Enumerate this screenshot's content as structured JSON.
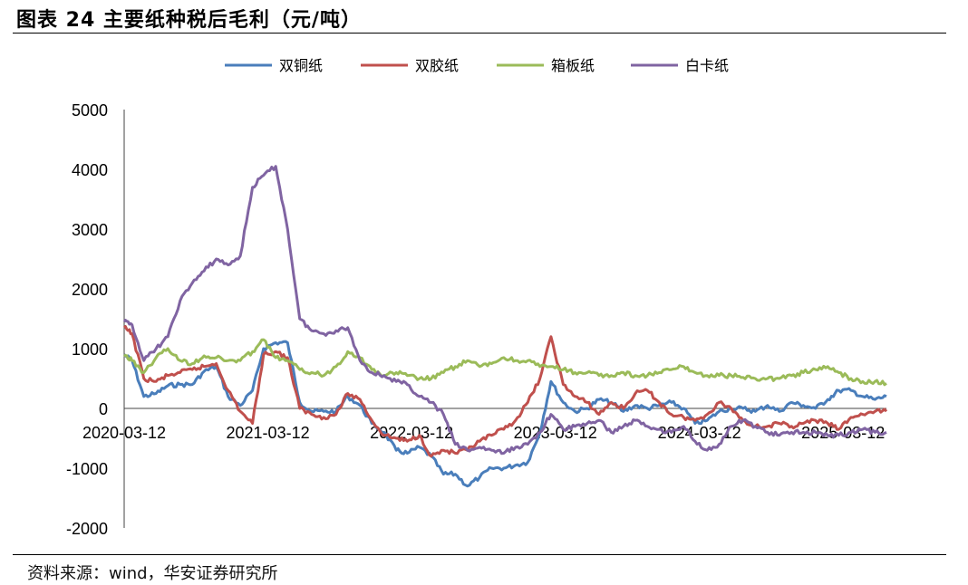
{
  "header": {
    "title": "图表 24 主要纸种税后毛利（元/吨）"
  },
  "footer": {
    "source": "资料来源：wind，华安证券研究所"
  },
  "chart_data": {
    "type": "line",
    "title": "图表 24 主要纸种税后毛利（元/吨）",
    "ylim": [
      -2000,
      5000
    ],
    "yticks": [
      5000,
      4000,
      3000,
      2000,
      1000,
      0,
      -1000,
      -2000
    ],
    "xrange": [
      "2020-03-12",
      "2025-06-30"
    ],
    "xticks": [
      "2020-03-12",
      "2021-03-12",
      "2022-03-12",
      "2023-03-12",
      "2024-03-12",
      "2025-03-12"
    ],
    "legend_position": "top",
    "grid": false,
    "series": [
      {
        "name": "双铜纸",
        "color": "#4a7ebb",
        "points": [
          [
            "2020-03-12",
            900
          ],
          [
            "2020-04-01",
            800
          ],
          [
            "2020-05-01",
            200
          ],
          [
            "2020-06-01",
            250
          ],
          [
            "2020-07-01",
            380
          ],
          [
            "2020-08-01",
            400
          ],
          [
            "2020-09-01",
            400
          ],
          [
            "2020-10-01",
            620
          ],
          [
            "2020-11-01",
            700
          ],
          [
            "2020-12-01",
            200
          ],
          [
            "2021-01-01",
            50
          ],
          [
            "2021-02-01",
            300
          ],
          [
            "2021-03-01",
            1000
          ],
          [
            "2021-04-01",
            1100
          ],
          [
            "2021-05-01",
            1100
          ],
          [
            "2021-06-01",
            100
          ],
          [
            "2021-07-01",
            -50
          ],
          [
            "2021-08-01",
            -50
          ],
          [
            "2021-09-01",
            -50
          ],
          [
            "2021-10-01",
            200
          ],
          [
            "2021-11-01",
            50
          ],
          [
            "2021-12-01",
            -250
          ],
          [
            "2022-01-01",
            -400
          ],
          [
            "2022-02-01",
            -700
          ],
          [
            "2022-03-01",
            -750
          ],
          [
            "2022-04-01",
            -650
          ],
          [
            "2022-05-01",
            -800
          ],
          [
            "2022-06-01",
            -1100
          ],
          [
            "2022-07-01",
            -1100
          ],
          [
            "2022-08-01",
            -1300
          ],
          [
            "2022-09-01",
            -1150
          ],
          [
            "2022-10-01",
            -1000
          ],
          [
            "2022-11-01",
            -1000
          ],
          [
            "2022-12-01",
            -950
          ],
          [
            "2023-01-01",
            -900
          ],
          [
            "2023-02-01",
            -400
          ],
          [
            "2023-03-01",
            450
          ],
          [
            "2023-04-01",
            100
          ],
          [
            "2023-05-01",
            -50
          ],
          [
            "2023-06-01",
            0
          ],
          [
            "2023-07-01",
            150
          ],
          [
            "2023-08-01",
            100
          ],
          [
            "2023-09-01",
            -50
          ],
          [
            "2023-10-01",
            50
          ],
          [
            "2023-11-01",
            0
          ],
          [
            "2023-12-01",
            50
          ],
          [
            "2024-01-01",
            100
          ],
          [
            "2024-02-01",
            0
          ],
          [
            "2024-03-01",
            -250
          ],
          [
            "2024-04-01",
            -200
          ],
          [
            "2024-05-01",
            -50
          ],
          [
            "2024-06-01",
            0
          ],
          [
            "2024-07-01",
            0
          ],
          [
            "2024-08-01",
            -50
          ],
          [
            "2024-09-01",
            50
          ],
          [
            "2024-10-01",
            -50
          ],
          [
            "2024-11-01",
            100
          ],
          [
            "2024-12-01",
            50
          ],
          [
            "2025-01-01",
            0
          ],
          [
            "2025-02-01",
            150
          ],
          [
            "2025-03-01",
            300
          ],
          [
            "2025-04-01",
            300
          ],
          [
            "2025-05-01",
            200
          ],
          [
            "2025-06-01",
            150
          ],
          [
            "2025-06-30",
            200
          ]
        ]
      },
      {
        "name": "双胶纸",
        "color": "#c0504d",
        "points": [
          [
            "2020-03-12",
            1350
          ],
          [
            "2020-04-01",
            1250
          ],
          [
            "2020-05-01",
            500
          ],
          [
            "2020-06-01",
            450
          ],
          [
            "2020-07-01",
            550
          ],
          [
            "2020-08-01",
            600
          ],
          [
            "2020-09-01",
            650
          ],
          [
            "2020-10-01",
            700
          ],
          [
            "2020-11-01",
            750
          ],
          [
            "2020-12-01",
            300
          ],
          [
            "2021-01-01",
            -50
          ],
          [
            "2021-02-01",
            -250
          ],
          [
            "2021-03-01",
            900
          ],
          [
            "2021-04-01",
            950
          ],
          [
            "2021-05-01",
            850
          ],
          [
            "2021-06-01",
            0
          ],
          [
            "2021-07-01",
            -100
          ],
          [
            "2021-08-01",
            -150
          ],
          [
            "2021-09-01",
            -100
          ],
          [
            "2021-10-01",
            250
          ],
          [
            "2021-11-01",
            150
          ],
          [
            "2021-12-01",
            -200
          ],
          [
            "2022-01-01",
            -450
          ],
          [
            "2022-02-01",
            -500
          ],
          [
            "2022-03-01",
            -550
          ],
          [
            "2022-04-01",
            -450
          ],
          [
            "2022-05-01",
            -800
          ],
          [
            "2022-06-01",
            -700
          ],
          [
            "2022-07-01",
            -750
          ],
          [
            "2022-08-01",
            -700
          ],
          [
            "2022-09-01",
            -550
          ],
          [
            "2022-10-01",
            -450
          ],
          [
            "2022-11-01",
            -350
          ],
          [
            "2022-12-01",
            -200
          ],
          [
            "2023-01-01",
            100
          ],
          [
            "2023-02-01",
            500
          ],
          [
            "2023-03-01",
            1200
          ],
          [
            "2023-04-01",
            400
          ],
          [
            "2023-05-01",
            200
          ],
          [
            "2023-06-01",
            100
          ],
          [
            "2023-07-01",
            -100
          ],
          [
            "2023-08-01",
            100
          ],
          [
            "2023-09-01",
            0
          ],
          [
            "2023-10-01",
            250
          ],
          [
            "2023-11-01",
            300
          ],
          [
            "2023-12-01",
            100
          ],
          [
            "2024-01-01",
            -100
          ],
          [
            "2024-02-01",
            -150
          ],
          [
            "2024-03-01",
            -200
          ],
          [
            "2024-04-01",
            -100
          ],
          [
            "2024-05-01",
            100
          ],
          [
            "2024-06-01",
            0
          ],
          [
            "2024-07-01",
            -200
          ],
          [
            "2024-08-01",
            -300
          ],
          [
            "2024-09-01",
            -300
          ],
          [
            "2024-10-01",
            -250
          ],
          [
            "2024-11-01",
            -300
          ],
          [
            "2024-12-01",
            -250
          ],
          [
            "2025-01-01",
            -200
          ],
          [
            "2025-02-01",
            -250
          ],
          [
            "2025-03-01",
            -350
          ],
          [
            "2025-04-01",
            -150
          ],
          [
            "2025-05-01",
            -100
          ],
          [
            "2025-06-01",
            -50
          ],
          [
            "2025-06-30",
            -50
          ]
        ]
      },
      {
        "name": "箱板纸",
        "color": "#9bbb59",
        "points": [
          [
            "2020-03-12",
            900
          ],
          [
            "2020-04-01",
            800
          ],
          [
            "2020-05-01",
            600
          ],
          [
            "2020-06-01",
            850
          ],
          [
            "2020-07-01",
            1000
          ],
          [
            "2020-08-01",
            800
          ],
          [
            "2020-09-01",
            750
          ],
          [
            "2020-10-01",
            880
          ],
          [
            "2020-11-01",
            850
          ],
          [
            "2020-12-01",
            800
          ],
          [
            "2021-01-01",
            800
          ],
          [
            "2021-02-01",
            950
          ],
          [
            "2021-03-01",
            1150
          ],
          [
            "2021-04-01",
            850
          ],
          [
            "2021-05-01",
            800
          ],
          [
            "2021-06-01",
            650
          ],
          [
            "2021-07-01",
            600
          ],
          [
            "2021-08-01",
            550
          ],
          [
            "2021-09-01",
            700
          ],
          [
            "2021-10-01",
            950
          ],
          [
            "2021-11-01",
            850
          ],
          [
            "2021-12-01",
            650
          ],
          [
            "2022-01-01",
            550
          ],
          [
            "2022-02-01",
            600
          ],
          [
            "2022-03-01",
            550
          ],
          [
            "2022-04-01",
            500
          ],
          [
            "2022-05-01",
            500
          ],
          [
            "2022-06-01",
            600
          ],
          [
            "2022-07-01",
            700
          ],
          [
            "2022-08-01",
            800
          ],
          [
            "2022-09-01",
            700
          ],
          [
            "2022-10-01",
            750
          ],
          [
            "2022-11-01",
            850
          ],
          [
            "2022-12-01",
            800
          ],
          [
            "2023-01-01",
            800
          ],
          [
            "2023-02-01",
            700
          ],
          [
            "2023-03-01",
            700
          ],
          [
            "2023-04-01",
            650
          ],
          [
            "2023-05-01",
            600
          ],
          [
            "2023-06-01",
            600
          ],
          [
            "2023-07-01",
            550
          ],
          [
            "2023-08-01",
            550
          ],
          [
            "2023-09-01",
            600
          ],
          [
            "2023-10-01",
            550
          ],
          [
            "2023-11-01",
            550
          ],
          [
            "2023-12-01",
            600
          ],
          [
            "2024-01-01",
            650
          ],
          [
            "2024-02-01",
            700
          ],
          [
            "2024-03-01",
            600
          ],
          [
            "2024-04-01",
            550
          ],
          [
            "2024-05-01",
            550
          ],
          [
            "2024-06-01",
            550
          ],
          [
            "2024-07-01",
            520
          ],
          [
            "2024-08-01",
            500
          ],
          [
            "2024-09-01",
            500
          ],
          [
            "2024-10-01",
            500
          ],
          [
            "2024-11-01",
            550
          ],
          [
            "2024-12-01",
            600
          ],
          [
            "2025-01-01",
            650
          ],
          [
            "2025-02-01",
            700
          ],
          [
            "2025-03-01",
            600
          ],
          [
            "2025-04-01",
            500
          ],
          [
            "2025-05-01",
            450
          ],
          [
            "2025-06-01",
            450
          ],
          [
            "2025-06-30",
            420
          ]
        ]
      },
      {
        "name": "白卡纸",
        "color": "#8064a2",
        "points": [
          [
            "2020-03-12",
            1450
          ],
          [
            "2020-04-01",
            1400
          ],
          [
            "2020-05-01",
            800
          ],
          [
            "2020-06-01",
            1000
          ],
          [
            "2020-07-01",
            1200
          ],
          [
            "2020-08-01",
            1800
          ],
          [
            "2020-09-01",
            2100
          ],
          [
            "2020-10-01",
            2300
          ],
          [
            "2020-11-01",
            2500
          ],
          [
            "2020-12-01",
            2400
          ],
          [
            "2021-01-01",
            2550
          ],
          [
            "2021-02-01",
            3700
          ],
          [
            "2021-03-01",
            3900
          ],
          [
            "2021-04-01",
            4050
          ],
          [
            "2021-05-01",
            3000
          ],
          [
            "2021-06-01",
            1500
          ],
          [
            "2021-07-01",
            1300
          ],
          [
            "2021-08-01",
            1250
          ],
          [
            "2021-09-01",
            1300
          ],
          [
            "2021-10-01",
            1350
          ],
          [
            "2021-11-01",
            800
          ],
          [
            "2021-12-01",
            600
          ],
          [
            "2022-01-01",
            550
          ],
          [
            "2022-02-01",
            450
          ],
          [
            "2022-03-01",
            400
          ],
          [
            "2022-04-01",
            200
          ],
          [
            "2022-05-01",
            100
          ],
          [
            "2022-06-01",
            -100
          ],
          [
            "2022-07-01",
            -600
          ],
          [
            "2022-08-01",
            -700
          ],
          [
            "2022-09-01",
            -650
          ],
          [
            "2022-10-01",
            -700
          ],
          [
            "2022-11-01",
            -750
          ],
          [
            "2022-12-01",
            -650
          ],
          [
            "2023-01-01",
            -600
          ],
          [
            "2023-02-01",
            -400
          ],
          [
            "2023-03-01",
            -100
          ],
          [
            "2023-04-01",
            -350
          ],
          [
            "2023-05-01",
            -300
          ],
          [
            "2023-06-01",
            -250
          ],
          [
            "2023-07-01",
            -200
          ],
          [
            "2023-08-01",
            -400
          ],
          [
            "2023-09-01",
            -300
          ],
          [
            "2023-10-01",
            -200
          ],
          [
            "2023-11-01",
            -300
          ],
          [
            "2023-12-01",
            -350
          ],
          [
            "2024-01-01",
            -400
          ],
          [
            "2024-02-01",
            -300
          ],
          [
            "2024-03-01",
            -550
          ],
          [
            "2024-04-01",
            -700
          ],
          [
            "2024-05-01",
            -600
          ],
          [
            "2024-06-01",
            -300
          ],
          [
            "2024-07-01",
            -200
          ],
          [
            "2024-08-01",
            -300
          ],
          [
            "2024-09-01",
            -400
          ],
          [
            "2024-10-01",
            -450
          ],
          [
            "2024-11-01",
            -400
          ],
          [
            "2024-12-01",
            -400
          ],
          [
            "2025-01-01",
            -400
          ],
          [
            "2025-02-01",
            -450
          ],
          [
            "2025-03-01",
            -450
          ],
          [
            "2025-04-01",
            -400
          ],
          [
            "2025-05-01",
            -350
          ],
          [
            "2025-06-01",
            -400
          ],
          [
            "2025-06-30",
            -400
          ]
        ]
      }
    ]
  }
}
